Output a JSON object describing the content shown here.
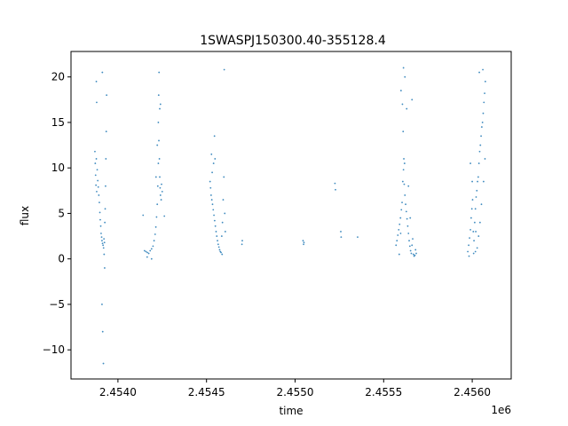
{
  "chart_data": {
    "type": "scatter",
    "title": "1SWASPJ150300.40-355128.4",
    "xlabel": "time",
    "ylabel": "flux",
    "x_offset_label": "1e6",
    "xlim": [
      2453735,
      2456220
    ],
    "ylim": [
      -13.2,
      22.8
    ],
    "x_ticks": [
      2.454,
      2.4545,
      2.455,
      2.4555,
      2.456
    ],
    "x_tick_labels": [
      "2.4540",
      "2.4545",
      "2.4550",
      "2.4555",
      "2.4560"
    ],
    "y_ticks": [
      -10,
      -5,
      0,
      5,
      10,
      15,
      20
    ],
    "y_tick_labels": [
      "−10",
      "−5",
      "0",
      "5",
      "10",
      "15",
      "20"
    ],
    "grid": false,
    "legend": "none",
    "marker_color": "#1f77b4",
    "series": [
      {
        "values_note": "",
        "points": [
          [
            2453870,
            11.8
          ],
          [
            2453872,
            10.5
          ],
          [
            2453874,
            9.2
          ],
          [
            2453876,
            8.1
          ],
          [
            2453878,
            11.0
          ],
          [
            2453880,
            7.4
          ],
          [
            2453883,
            9.8
          ],
          [
            2453886,
            8.6
          ],
          [
            2453889,
            7.9
          ],
          [
            2453892,
            7.0
          ],
          [
            2453895,
            6.2
          ],
          [
            2453898,
            5.1
          ],
          [
            2453900,
            4.3
          ],
          [
            2453903,
            3.6
          ],
          [
            2453905,
            2.8
          ],
          [
            2453908,
            2.4
          ],
          [
            2453910,
            2.0
          ],
          [
            2453913,
            1.7
          ],
          [
            2453916,
            1.5
          ],
          [
            2453919,
            1.2
          ],
          [
            2453921,
            2.2
          ],
          [
            2453924,
            1.8
          ],
          [
            2453926,
            4.0
          ],
          [
            2453928,
            5.5
          ],
          [
            2453930,
            8.0
          ],
          [
            2453932,
            11.0
          ],
          [
            2453934,
            14.0
          ],
          [
            2453936,
            18.0
          ],
          [
            2453878,
            19.5
          ],
          [
            2453880,
            17.2
          ],
          [
            2453910,
            -5.0
          ],
          [
            2453914,
            -8.0
          ],
          [
            2453918,
            -11.5
          ],
          [
            2453922,
            0.5
          ],
          [
            2453925,
            -1.0
          ],
          [
            2453912,
            20.5
          ],
          [
            2454150,
            0.9
          ],
          [
            2454158,
            0.8
          ],
          [
            2454166,
            0.7
          ],
          [
            2454174,
            0.6
          ],
          [
            2454182,
            0.9
          ],
          [
            2454190,
            1.1
          ],
          [
            2454198,
            1.4
          ],
          [
            2454204,
            2.0
          ],
          [
            2454210,
            2.7
          ],
          [
            2454214,
            3.5
          ],
          [
            2454218,
            4.6
          ],
          [
            2454222,
            6.0
          ],
          [
            2454225,
            8.0
          ],
          [
            2454228,
            10.5
          ],
          [
            2454231,
            13.0
          ],
          [
            2454234,
            11.0
          ],
          [
            2454236,
            9.0
          ],
          [
            2454238,
            7.8
          ],
          [
            2454240,
            7.0
          ],
          [
            2454244,
            6.5
          ],
          [
            2454246,
            8.2
          ],
          [
            2454250,
            7.4
          ],
          [
            2454262,
            4.7
          ],
          [
            2454228,
            15.0
          ],
          [
            2454230,
            18.0
          ],
          [
            2454232,
            20.5
          ],
          [
            2454236,
            16.5
          ],
          [
            2454222,
            12.5
          ],
          [
            2454215,
            9.0
          ],
          [
            2454142,
            4.8
          ],
          [
            2454165,
            0.2
          ],
          [
            2454190,
            0.0
          ],
          [
            2454240,
            17.0
          ],
          [
            2454520,
            8.5
          ],
          [
            2454523,
            7.8
          ],
          [
            2454526,
            7.0
          ],
          [
            2454530,
            6.5
          ],
          [
            2454534,
            6.0
          ],
          [
            2454538,
            5.4
          ],
          [
            2454542,
            4.8
          ],
          [
            2454546,
            4.2
          ],
          [
            2454550,
            3.6
          ],
          [
            2454554,
            3.0
          ],
          [
            2454558,
            2.5
          ],
          [
            2454562,
            2.0
          ],
          [
            2454566,
            1.6
          ],
          [
            2454570,
            1.3
          ],
          [
            2454574,
            1.0
          ],
          [
            2454578,
            0.8
          ],
          [
            2454582,
            0.7
          ],
          [
            2454586,
            2.5
          ],
          [
            2454590,
            4.0
          ],
          [
            2454594,
            6.5
          ],
          [
            2454598,
            9.0
          ],
          [
            2454540,
            10.5
          ],
          [
            2454545,
            13.5
          ],
          [
            2454548,
            11.0
          ],
          [
            2454528,
            11.5
          ],
          [
            2454532,
            9.5
          ],
          [
            2454600,
            20.8
          ],
          [
            2454603,
            5.0
          ],
          [
            2454606,
            3.0
          ],
          [
            2454588,
            0.5
          ],
          [
            2454700,
            1.6
          ],
          [
            2454702,
            2.0
          ],
          [
            2455045,
            2.0
          ],
          [
            2455048,
            1.6
          ],
          [
            2455050,
            1.8
          ],
          [
            2455225,
            8.3
          ],
          [
            2455228,
            7.6
          ],
          [
            2455258,
            3.0
          ],
          [
            2455260,
            2.4
          ],
          [
            2455353,
            2.4
          ],
          [
            2455570,
            1.5
          ],
          [
            2455575,
            2.0
          ],
          [
            2455580,
            2.6
          ],
          [
            2455585,
            3.2
          ],
          [
            2455590,
            3.8
          ],
          [
            2455595,
            4.5
          ],
          [
            2455600,
            5.4
          ],
          [
            2455604,
            6.2
          ],
          [
            2455608,
            8.5
          ],
          [
            2455612,
            9.8
          ],
          [
            2455616,
            8.2
          ],
          [
            2455620,
            7.0
          ],
          [
            2455624,
            6.0
          ],
          [
            2455628,
            5.2
          ],
          [
            2455632,
            4.4
          ],
          [
            2455636,
            3.6
          ],
          [
            2455640,
            2.8
          ],
          [
            2455644,
            2.0
          ],
          [
            2455648,
            1.4
          ],
          [
            2455652,
            0.9
          ],
          [
            2455656,
            0.6
          ],
          [
            2455660,
            1.5
          ],
          [
            2455664,
            2.2
          ],
          [
            2455668,
            0.5
          ],
          [
            2455672,
            0.3
          ],
          [
            2455676,
            0.4
          ],
          [
            2455680,
            1.0
          ],
          [
            2455684,
            0.6
          ],
          [
            2455614,
            11.0
          ],
          [
            2455618,
            10.5
          ],
          [
            2455610,
            14.0
          ],
          [
            2455606,
            17.0
          ],
          [
            2455612,
            21.0
          ],
          [
            2455620,
            20.0
          ],
          [
            2455598,
            18.5
          ],
          [
            2455630,
            16.5
          ],
          [
            2455640,
            8.0
          ],
          [
            2455650,
            4.5
          ],
          [
            2455660,
            17.5
          ],
          [
            2455588,
            0.5
          ],
          [
            2455596,
            2.8
          ],
          [
            2455975,
            0.8
          ],
          [
            2455980,
            1.5
          ],
          [
            2455985,
            2.3
          ],
          [
            2455990,
            3.2
          ],
          [
            2455994,
            4.5
          ],
          [
            2455998,
            5.5
          ],
          [
            2456002,
            6.5
          ],
          [
            2456006,
            3.0
          ],
          [
            2456010,
            2.0
          ],
          [
            2456014,
            4.0
          ],
          [
            2456018,
            5.5
          ],
          [
            2456022,
            6.8
          ],
          [
            2456026,
            7.5
          ],
          [
            2456030,
            8.5
          ],
          [
            2456034,
            9.0
          ],
          [
            2456038,
            10.5
          ],
          [
            2456042,
            11.8
          ],
          [
            2456046,
            12.5
          ],
          [
            2456050,
            13.5
          ],
          [
            2456054,
            14.5
          ],
          [
            2456058,
            15.0
          ],
          [
            2456062,
            16.0
          ],
          [
            2456066,
            17.2
          ],
          [
            2456070,
            18.2
          ],
          [
            2456074,
            19.5
          ],
          [
            2456040,
            20.5
          ],
          [
            2456060,
            20.8
          ],
          [
            2456000,
            8.5
          ],
          [
            2455990,
            10.5
          ],
          [
            2456020,
            3.0
          ],
          [
            2456028,
            1.2
          ],
          [
            2456036,
            2.5
          ],
          [
            2456044,
            4.0
          ],
          [
            2456052,
            6.0
          ],
          [
            2456064,
            8.5
          ],
          [
            2456072,
            11.0
          ],
          [
            2455982,
            0.3
          ],
          [
            2456008,
            0.6
          ],
          [
            2456018,
            0.8
          ]
        ]
      }
    ]
  }
}
